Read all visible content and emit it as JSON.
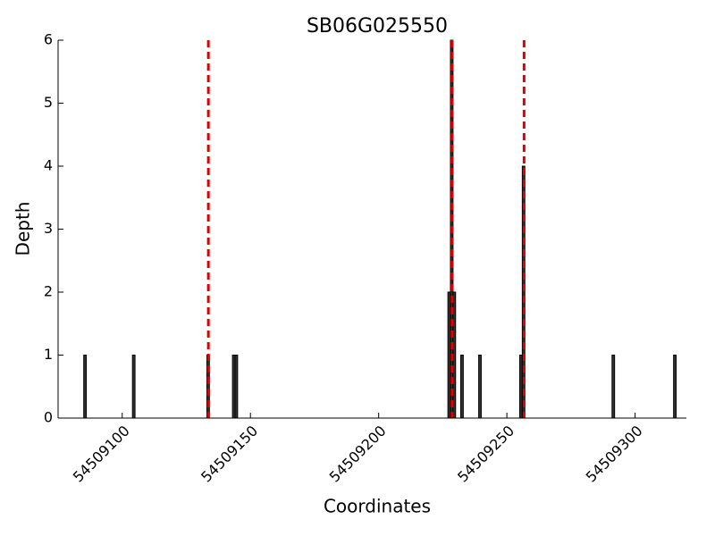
{
  "chart_data": {
    "type": "bar",
    "title": "SB06G025550",
    "x_label": "Coordinates",
    "y_label": "Depth",
    "x": [
      54509085,
      54509104,
      54509133,
      54509143,
      54509144,
      54509227,
      54509228,
      54509229,
      54509232,
      54509239,
      54509255,
      54509256,
      54509291,
      54509315
    ],
    "values": [
      1,
      1,
      1,
      1,
      1,
      2,
      6,
      2,
      1,
      1,
      1,
      4,
      1,
      1
    ],
    "color": "#333333",
    "xlim": [
      54509075,
      54509320
    ],
    "ylim": [
      0,
      6
    ],
    "xticks": [
      54509100,
      54509150,
      54509200,
      54509250,
      54509300
    ],
    "yticks": [
      0,
      1,
      2,
      3,
      4,
      5,
      6
    ],
    "vlines": {
      "x": [
        54509133.6,
        54509228.6,
        54509256.7
      ],
      "color": "#dd0000",
      "style": "dashed"
    }
  }
}
